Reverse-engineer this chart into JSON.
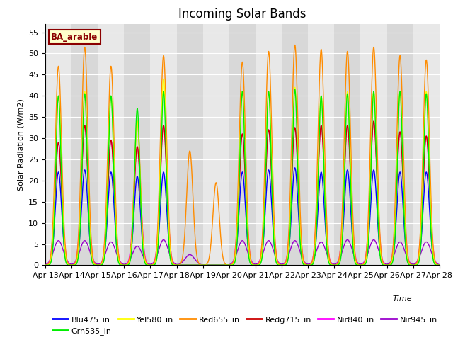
{
  "title": "Incoming Solar Bands",
  "ylabel": "Solar Radiation (W/m2)",
  "xlabel": "Time",
  "annotation": "BA_arable",
  "ylim": [
    0,
    57
  ],
  "yticks": [
    0,
    5,
    10,
    15,
    20,
    25,
    30,
    35,
    40,
    45,
    50,
    55
  ],
  "x_tick_labels": [
    "Apr 13",
    "Apr 14",
    "Apr 15",
    "Apr 16",
    "Apr 17",
    "Apr 18",
    "Apr 19",
    "Apr 20",
    "Apr 21",
    "Apr 22",
    "Apr 23",
    "Apr 24",
    "Apr 25",
    "Apr 26",
    "Apr 27",
    "Apr 28"
  ],
  "series": {
    "Blu475_in": {
      "color": "#0000FF",
      "lw": 1.0
    },
    "Grn535_in": {
      "color": "#00EE00",
      "lw": 1.0
    },
    "Yel580_in": {
      "color": "#FFFF00",
      "lw": 1.0
    },
    "Red655_in": {
      "color": "#FF8C00",
      "lw": 1.0
    },
    "Redg715_in": {
      "color": "#CC0000",
      "lw": 1.0
    },
    "Nir840_in": {
      "color": "#FF00FF",
      "lw": 1.0
    },
    "Nir945_in": {
      "color": "#9900CC",
      "lw": 1.0
    }
  },
  "bg_colors": [
    "#e8e8e8",
    "#d8d8d8"
  ],
  "fig_bg": "#ffffff",
  "title_fontsize": 12,
  "axis_fontsize": 8,
  "legend_fontsize": 8,
  "red655_peaks": [
    47,
    51.5,
    47,
    34,
    49.5,
    27,
    19.5,
    48,
    50.5,
    52,
    51,
    50.5,
    51.5,
    49.5,
    48.5
  ],
  "grn535_peaks": [
    40,
    40.5,
    40,
    37,
    41,
    0,
    0,
    41,
    41,
    41.5,
    40,
    40.5,
    41,
    41,
    40.5
  ],
  "yel580_peaks": [
    40,
    41,
    40,
    34,
    44,
    0,
    0,
    41,
    41,
    42,
    40,
    41,
    41,
    41,
    41
  ],
  "redg715_peaks": [
    29,
    33,
    29.5,
    28,
    33,
    0,
    0,
    31,
    32,
    32.5,
    33,
    33,
    34,
    31.5,
    30.5
  ],
  "blu475_peaks": [
    22,
    22.5,
    22,
    21,
    22,
    0,
    0,
    22,
    22.5,
    23,
    22,
    22.5,
    22.5,
    22,
    22
  ],
  "nir840_peaks": [
    29,
    33,
    29.5,
    28,
    33,
    0,
    0,
    31,
    32,
    32.5,
    33,
    33,
    34,
    31.5,
    30.5
  ],
  "nir945_peaks": [
    5.8,
    5.8,
    5.5,
    4.5,
    6.0,
    2.5,
    0,
    5.8,
    5.8,
    5.8,
    5.5,
    6.0,
    6.0,
    5.5,
    5.5
  ]
}
